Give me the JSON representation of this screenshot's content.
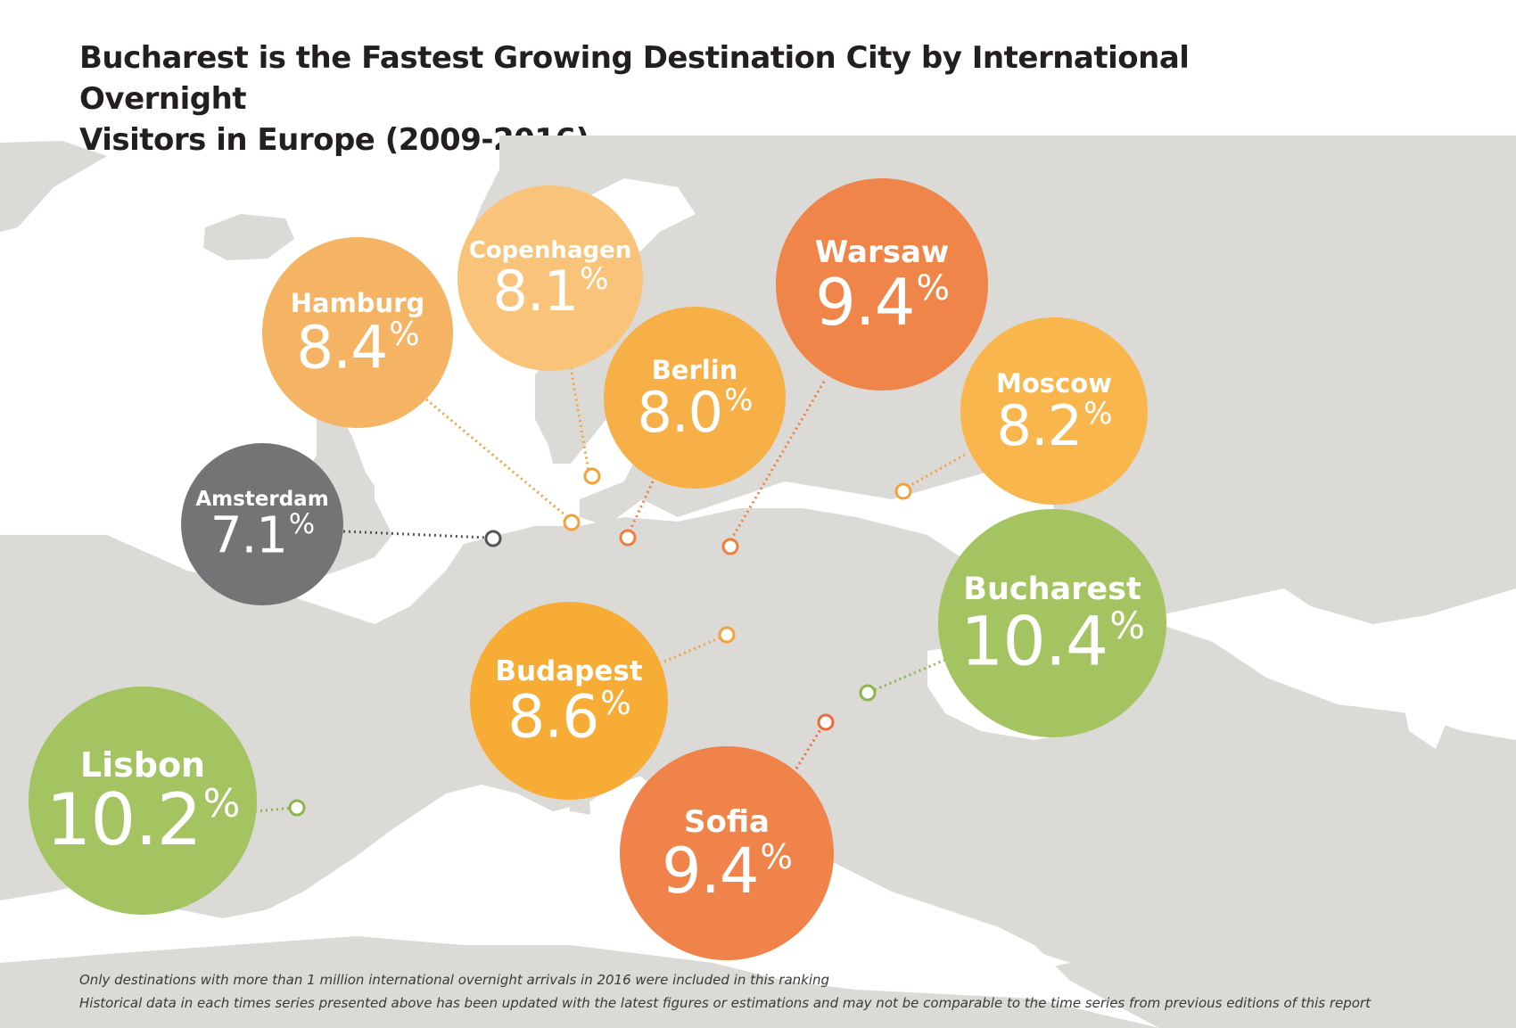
{
  "title": {
    "line1": "Bucharest is the Fastest Growing Destination City by International Overnight",
    "line2": "Visitors in Europe (2009-2016)"
  },
  "colors": {
    "map_land": "#dcdad6",
    "light_orange": "#f6b664",
    "pale_orange": "#f9c279",
    "mid_orange": "#f6ad45",
    "deep_orange": "#f0854a",
    "green": "#a4c561",
    "gray": "#737373"
  },
  "cities": [
    {
      "name": "Hamburg",
      "value": "8.4",
      "unit": "%",
      "color": "#f5b463",
      "marker_color": "#f2a23c"
    },
    {
      "name": "Copenhagen",
      "value": "8.1",
      "unit": "%",
      "color": "#f9c47a",
      "marker_color": "#f2a23c"
    },
    {
      "name": "Berlin",
      "value": "8.0",
      "unit": "%",
      "color": "#f7af47",
      "marker_color": "#ee7f3a"
    },
    {
      "name": "Warsaw",
      "value": "9.4",
      "unit": "%",
      "color": "#f0854a",
      "marker_color": "#ee7f3a"
    },
    {
      "name": "Moscow",
      "value": "8.2",
      "unit": "%",
      "color": "#f8b64c",
      "marker_color": "#f2a23c"
    },
    {
      "name": "Amsterdam",
      "value": "7.1",
      "unit": "%",
      "color": "#737475",
      "marker_color": "#555555"
    },
    {
      "name": "Bucharest",
      "value": "10.4",
      "unit": "%",
      "color": "#a3c460",
      "marker_color": "#8db44b"
    },
    {
      "name": "Budapest",
      "value": "8.6",
      "unit": "%",
      "color": "#f7ad35",
      "marker_color": "#f2a23c"
    },
    {
      "name": "Lisbon",
      "value": "10.2",
      "unit": "%",
      "color": "#a3c460",
      "marker_color": "#8db44b"
    },
    {
      "name": "Sofia",
      "value": "9.4",
      "unit": "%",
      "color": "#ef8349",
      "marker_color": "#ee6a3a"
    }
  ],
  "footnotes": {
    "line1": "Only destinations with more than 1 million international overnight arrivals in 2016 were included in this ranking",
    "line2": "Historical data in each times series presented above has been updated with the latest figures or estimations and may not be comparable to the time series from previous editions of this report"
  }
}
